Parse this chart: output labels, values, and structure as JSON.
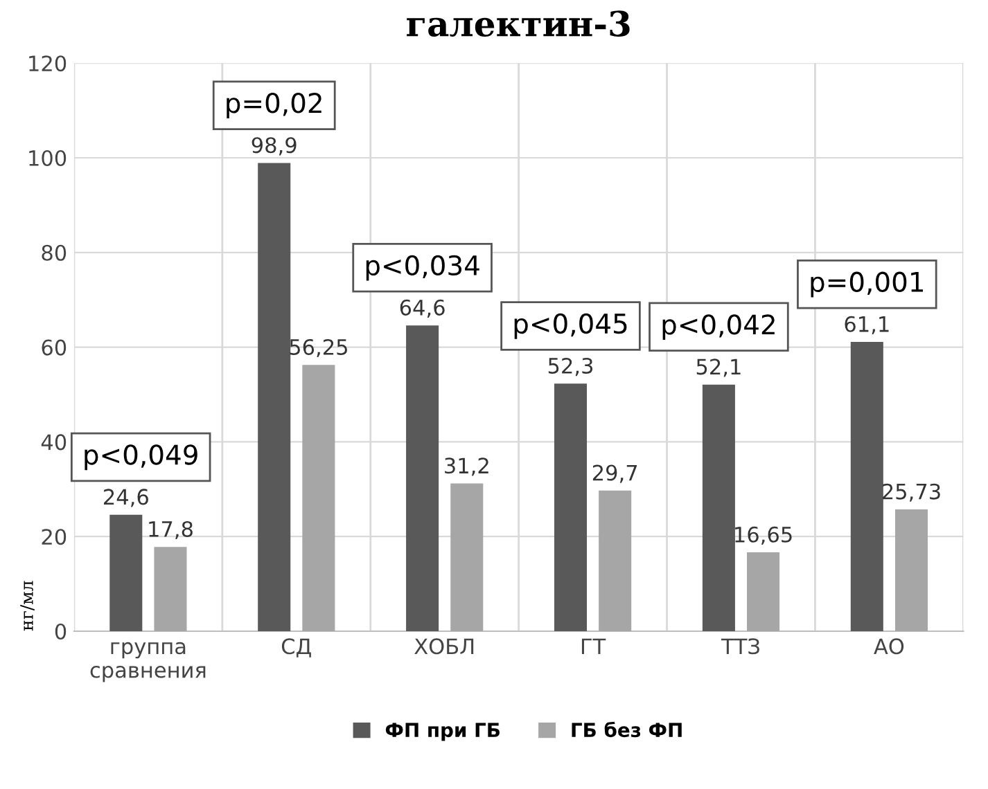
{
  "chart_data": {
    "type": "bar",
    "title": "галектин-3",
    "ylabel": "нг/мл",
    "categories": [
      "группа\nсравнения",
      "СД",
      "ХОБЛ",
      "ГТ",
      "ТТЗ",
      "АО"
    ],
    "series": [
      {
        "name": "ФП при ГБ",
        "color": "#595959",
        "values": [
          24.6,
          98.9,
          64.6,
          52.3,
          52.1,
          61.1
        ],
        "value_labels": [
          "24,6",
          "98,9",
          "64,6",
          "52,3",
          "52,1",
          "61,1"
        ]
      },
      {
        "name": "ГБ без ФП",
        "color": "#a6a6a6",
        "values": [
          17.8,
          56.25,
          31.2,
          29.7,
          16.65,
          25.73
        ],
        "value_labels": [
          "17,8",
          "56,25",
          "31,2",
          "29,7",
          "16,65",
          "25,73"
        ]
      }
    ],
    "ylim": [
      0,
      120
    ],
    "yticks": [
      0,
      20,
      40,
      60,
      80,
      100,
      120
    ],
    "grid": true,
    "legend": "bottom",
    "annotations": [
      "p<0,049",
      "p=0,02",
      "p<0,034",
      "p<0,045",
      "p<0,042",
      "p=0,001"
    ]
  }
}
